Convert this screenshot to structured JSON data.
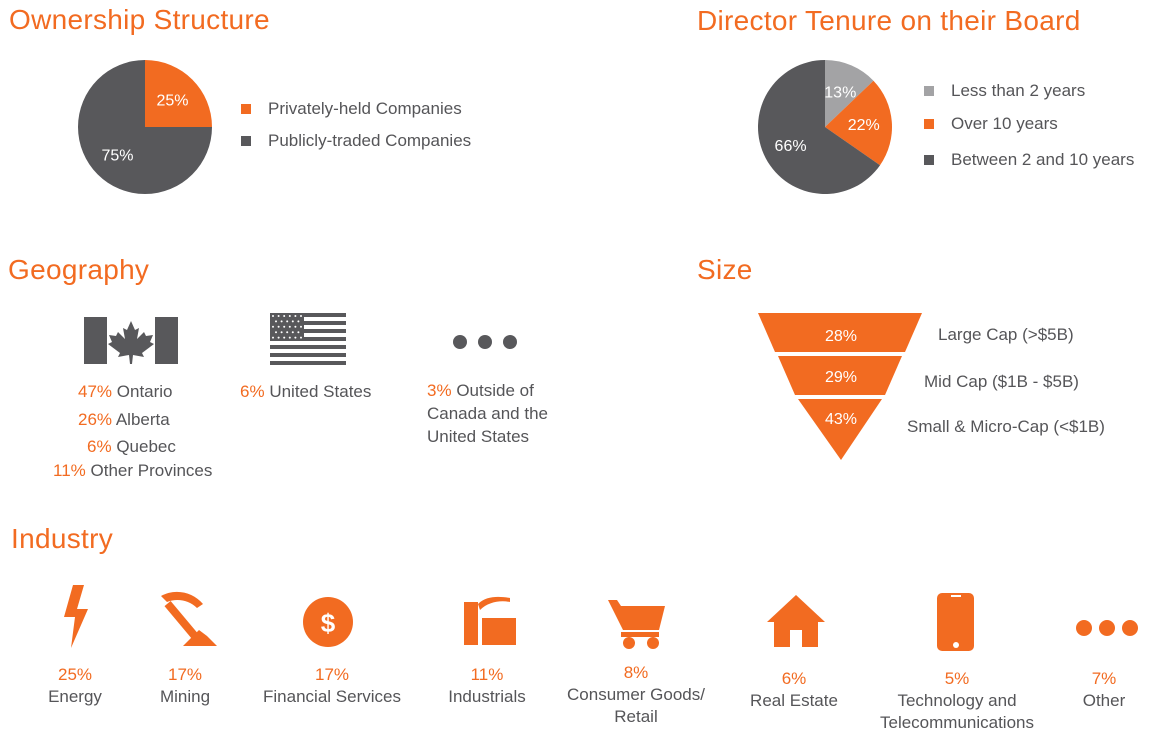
{
  "colors": {
    "orange": "#f26b21",
    "dark": "#58585b",
    "light": "#a3a3a5"
  },
  "ownership": {
    "title": "Ownership Structure",
    "legend": [
      {
        "label": "Privately-held Companies",
        "color": "#f26b21"
      },
      {
        "label": "Publicly-traded Companies",
        "color": "#58585b"
      }
    ]
  },
  "tenure": {
    "title": "Director Tenure on their Board",
    "legend": [
      {
        "label": "Less than 2 years",
        "color": "#a3a3a5"
      },
      {
        "label": "Over 10 years",
        "color": "#f26b21"
      },
      {
        "label": "Between 2 and 10 years",
        "color": "#58585b"
      }
    ]
  },
  "geography": {
    "title": "Geography",
    "canada": [
      {
        "pct": "47%",
        "label": "Ontario"
      },
      {
        "pct": "26%",
        "label": "Alberta"
      },
      {
        "pct": "6%",
        "label": "Quebec"
      },
      {
        "pct": "11%",
        "label": "Other Provinces"
      }
    ],
    "us": {
      "pct": "6%",
      "label": "United States"
    },
    "outside": {
      "pct": "3%",
      "line1": "Outside of",
      "line2": "Canada and the",
      "line3": "United States"
    },
    "icons": [
      "canada-flag-icon",
      "us-flag-icon",
      "more-dots-icon"
    ]
  },
  "size": {
    "title": "Size",
    "tiers": [
      {
        "value": 28,
        "display": "28%",
        "label": "Large Cap (>$5B)"
      },
      {
        "value": 29,
        "display": "29%",
        "label": "Mid Cap ($1B - $5B)"
      },
      {
        "value": 43,
        "display": "43%",
        "label": "Small & Micro-Cap (<$1B)"
      }
    ]
  },
  "industry": {
    "title": "Industry",
    "items": [
      {
        "pct": "25%",
        "label": "Energy",
        "icon": "lightning-icon"
      },
      {
        "pct": "17%",
        "label": "Mining",
        "icon": "pickaxe-icon"
      },
      {
        "pct": "17%",
        "label": "Financial Services",
        "icon": "dollar-coin-icon"
      },
      {
        "pct": "11%",
        "label": "Industrials",
        "icon": "factory-icon"
      },
      {
        "pct": "8%",
        "label": "Consumer Goods/",
        "label2": "Retail",
        "icon": "shopping-cart-icon"
      },
      {
        "pct": "6%",
        "label": "Real Estate",
        "icon": "house-icon"
      },
      {
        "pct": "5%",
        "label": "Technology and",
        "label2": "Telecommunications",
        "icon": "smartphone-icon"
      },
      {
        "pct": "7%",
        "label": "Other",
        "icon": "more-dots-icon"
      }
    ]
  },
  "chart_data": [
    {
      "type": "pie",
      "title": "Ownership Structure",
      "categories": [
        "Privately-held Companies",
        "Publicly-traded Companies"
      ],
      "values": [
        25,
        75
      ],
      "labels": [
        "25%",
        "75%"
      ],
      "legend": "right"
    },
    {
      "type": "pie",
      "title": "Director Tenure on their Board",
      "categories": [
        "Less than 2 years",
        "Over 10 years",
        "Between 2 and 10 years"
      ],
      "values": [
        13,
        22,
        66
      ],
      "labels": [
        "13%",
        "22%",
        "66%"
      ],
      "legend": "right"
    },
    {
      "type": "bar",
      "title": "Size",
      "categories": [
        "Large Cap (>$5B)",
        "Mid Cap ($1B - $5B)",
        "Small & Micro-Cap (<$1B)"
      ],
      "values": [
        28,
        29,
        43
      ]
    },
    {
      "type": "table",
      "title": "Industry",
      "categories": [
        "Energy",
        "Mining",
        "Financial Services",
        "Industrials",
        "Consumer Goods/Retail",
        "Real Estate",
        "Technology and Telecommunications",
        "Other"
      ],
      "values": [
        25,
        17,
        17,
        11,
        8,
        6,
        5,
        7
      ]
    }
  ]
}
